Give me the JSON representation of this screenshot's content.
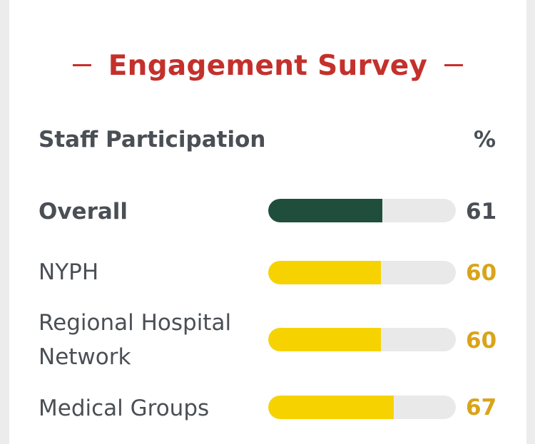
{
  "card": {
    "title": "Engagement Survey",
    "header_left": "Staff Participation",
    "header_right": "%"
  },
  "colors": {
    "title": "#c4302b",
    "overall_bar": "#1f4e3d",
    "group_bar": "#f6d300",
    "group_value": "#d9a41a",
    "overall_value": "#4a4f55",
    "track": "#e9e9e9"
  },
  "chart_data": {
    "type": "bar",
    "orientation": "horizontal",
    "title": "Engagement Survey",
    "category_header": "Staff Participation",
    "value_header": "%",
    "xlim": [
      0,
      100
    ],
    "categories": [
      "Overall",
      "NYPH",
      "Regional Hospital Network",
      "Medical Groups"
    ],
    "values": [
      61,
      60,
      60,
      67
    ],
    "labels": [
      "61",
      "60",
      "60",
      "67"
    ]
  }
}
